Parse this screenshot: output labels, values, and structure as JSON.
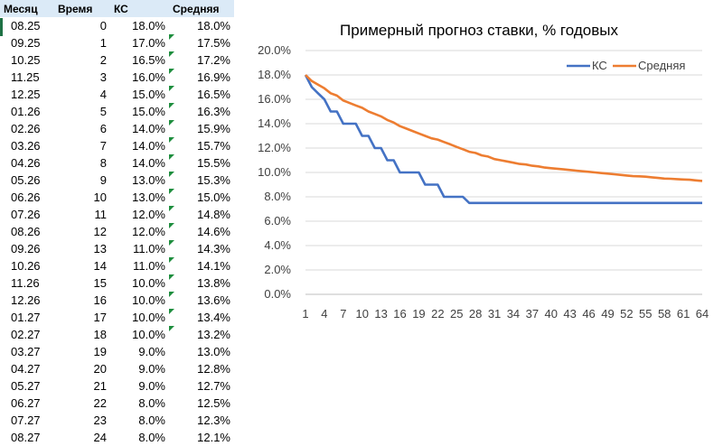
{
  "table": {
    "headers": [
      "Месяц",
      "Время",
      "КС",
      "Средняя"
    ],
    "rows": [
      [
        "08.25",
        "0",
        "18.0%",
        "18.0%"
      ],
      [
        "09.25",
        "1",
        "17.0%",
        "17.5%"
      ],
      [
        "10.25",
        "2",
        "16.5%",
        "17.2%"
      ],
      [
        "11.25",
        "3",
        "16.0%",
        "16.9%"
      ],
      [
        "12.25",
        "4",
        "15.0%",
        "16.5%"
      ],
      [
        "01.26",
        "5",
        "15.0%",
        "16.3%"
      ],
      [
        "02.26",
        "6",
        "14.0%",
        "15.9%"
      ],
      [
        "03.26",
        "7",
        "14.0%",
        "15.7%"
      ],
      [
        "04.26",
        "8",
        "14.0%",
        "15.5%"
      ],
      [
        "05.26",
        "9",
        "13.0%",
        "15.3%"
      ],
      [
        "06.26",
        "10",
        "13.0%",
        "15.0%"
      ],
      [
        "07.26",
        "11",
        "12.0%",
        "14.8%"
      ],
      [
        "08.26",
        "12",
        "12.0%",
        "14.6%"
      ],
      [
        "09.26",
        "13",
        "11.0%",
        "14.3%"
      ],
      [
        "10.26",
        "14",
        "11.0%",
        "14.1%"
      ],
      [
        "11.26",
        "15",
        "10.0%",
        "13.8%"
      ],
      [
        "12.26",
        "16",
        "10.0%",
        "13.6%"
      ],
      [
        "01.27",
        "17",
        "10.0%",
        "13.4%"
      ],
      [
        "02.27",
        "18",
        "10.0%",
        "13.2%"
      ],
      [
        "03.27",
        "19",
        "9.0%",
        "13.0%"
      ],
      [
        "04.27",
        "20",
        "9.0%",
        "12.8%"
      ],
      [
        "05.27",
        "21",
        "9.0%",
        "12.7%"
      ],
      [
        "06.27",
        "22",
        "8.0%",
        "12.5%"
      ],
      [
        "07.27",
        "23",
        "8.0%",
        "12.3%"
      ],
      [
        "08.27",
        "24",
        "8.0%",
        "12.1%"
      ]
    ]
  },
  "chart_data": {
    "type": "line",
    "title": "Примерный прогноз ставки, % годовых",
    "xlabel": "",
    "ylabel": "",
    "ylim": [
      0,
      20
    ],
    "y_ticks": [
      "0.0%",
      "2.0%",
      "4.0%",
      "6.0%",
      "8.0%",
      "10.0%",
      "12.0%",
      "14.0%",
      "16.0%",
      "18.0%",
      "20.0%"
    ],
    "x_tick_labels": [
      "1",
      "4",
      "7",
      "10",
      "13",
      "16",
      "19",
      "22",
      "25",
      "28",
      "31",
      "34",
      "37",
      "40",
      "43",
      "46",
      "49",
      "52",
      "55",
      "58",
      "61",
      "64"
    ],
    "x_range": [
      1,
      64
    ],
    "grid": "horizontal",
    "legend_position": "top-right",
    "series": [
      {
        "name": "КС",
        "color": "#4472c4",
        "values": [
          18,
          17,
          16.5,
          16,
          15,
          15,
          14,
          14,
          14,
          13,
          13,
          12,
          12,
          11,
          11,
          10,
          10,
          10,
          10,
          9,
          9,
          9,
          8,
          8,
          8,
          8,
          7.5,
          7.5,
          7.5,
          7.5,
          7.5,
          7.5,
          7.5,
          7.5,
          7.5,
          7.5,
          7.5,
          7.5,
          7.5,
          7.5,
          7.5,
          7.5,
          7.5,
          7.5,
          7.5,
          7.5,
          7.5,
          7.5,
          7.5,
          7.5,
          7.5,
          7.5,
          7.5,
          7.5,
          7.5,
          7.5,
          7.5,
          7.5,
          7.5,
          7.5,
          7.5,
          7.5,
          7.5,
          7.5
        ]
      },
      {
        "name": "Средняя",
        "color": "#ed7d31",
        "values": [
          18,
          17.5,
          17.2,
          16.9,
          16.5,
          16.3,
          15.9,
          15.7,
          15.5,
          15.3,
          15,
          14.8,
          14.6,
          14.3,
          14.1,
          13.8,
          13.6,
          13.4,
          13.2,
          13,
          12.8,
          12.7,
          12.5,
          12.3,
          12.1,
          11.9,
          11.7,
          11.6,
          11.4,
          11.3,
          11.1,
          11,
          10.9,
          10.8,
          10.7,
          10.65,
          10.55,
          10.5,
          10.4,
          10.35,
          10.3,
          10.25,
          10.2,
          10.15,
          10.1,
          10.05,
          10,
          9.95,
          9.9,
          9.85,
          9.8,
          9.75,
          9.7,
          9.68,
          9.65,
          9.6,
          9.55,
          9.5,
          9.48,
          9.45,
          9.42,
          9.4,
          9.35,
          9.3
        ]
      }
    ]
  }
}
